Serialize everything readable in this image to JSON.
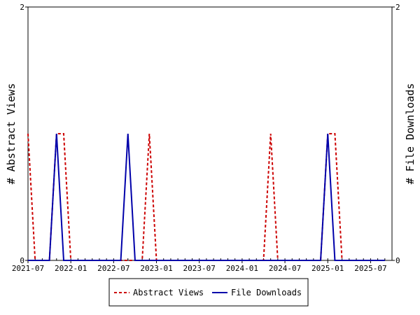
{
  "chart_data": {
    "type": "line",
    "title": "",
    "ylabel_left": "# Abstract Views",
    "ylabel_right": "# File Downloads",
    "x_ticks": [
      "2021-07",
      "2022-01",
      "2022-07",
      "2023-01",
      "2023-07",
      "2024-01",
      "2024-07",
      "2025-01",
      "2025-07"
    ],
    "ylim_left": [
      0,
      2
    ],
    "ylim_right": [
      0,
      2
    ],
    "y_ticks_left": [
      "0",
      "2"
    ],
    "y_ticks_right": [
      "0",
      "2"
    ],
    "legend_position": "bottom",
    "grid": false,
    "series": [
      {
        "name": "Abstract Views",
        "axis": "left",
        "color": "#cc0000",
        "dash": true,
        "points": [
          [
            "2021-07",
            1
          ],
          [
            "2021-08",
            0
          ],
          [
            "2021-09",
            0
          ],
          [
            "2021-10",
            0
          ],
          [
            "2021-11",
            1
          ],
          [
            "2021-12",
            1
          ],
          [
            "2022-01",
            0
          ],
          [
            "2022-02",
            0
          ],
          [
            "2022-03",
            0
          ],
          [
            "2022-04",
            0
          ],
          [
            "2022-05",
            0
          ],
          [
            "2022-06",
            0
          ],
          [
            "2022-07",
            0
          ],
          [
            "2022-08",
            0
          ],
          [
            "2022-09",
            0
          ],
          [
            "2022-10",
            0
          ],
          [
            "2022-11",
            0
          ],
          [
            "2022-12",
            1
          ],
          [
            "2023-01",
            0
          ],
          [
            "2023-02",
            0
          ],
          [
            "2023-03",
            0
          ],
          [
            "2023-04",
            0
          ],
          [
            "2023-05",
            0
          ],
          [
            "2023-06",
            0
          ],
          [
            "2023-07",
            0
          ],
          [
            "2023-08",
            0
          ],
          [
            "2023-09",
            0
          ],
          [
            "2023-10",
            0
          ],
          [
            "2023-11",
            0
          ],
          [
            "2023-12",
            0
          ],
          [
            "2024-01",
            0
          ],
          [
            "2024-02",
            0
          ],
          [
            "2024-03",
            0
          ],
          [
            "2024-04",
            0
          ],
          [
            "2024-05",
            1
          ],
          [
            "2024-06",
            0
          ],
          [
            "2024-07",
            0
          ],
          [
            "2024-08",
            0
          ],
          [
            "2024-09",
            0
          ],
          [
            "2024-10",
            0
          ],
          [
            "2024-11",
            0
          ],
          [
            "2024-12",
            0
          ],
          [
            "2025-01",
            1
          ],
          [
            "2025-02",
            1
          ],
          [
            "2025-03",
            0
          ],
          [
            "2025-04",
            0
          ],
          [
            "2025-05",
            0
          ],
          [
            "2025-06",
            0
          ],
          [
            "2025-07",
            0
          ],
          [
            "2025-08",
            0
          ],
          [
            "2025-09",
            0
          ]
        ]
      },
      {
        "name": "File Downloads",
        "axis": "right",
        "color": "#0000aa",
        "dash": false,
        "points": [
          [
            "2021-07",
            0
          ],
          [
            "2021-08",
            0
          ],
          [
            "2021-09",
            0
          ],
          [
            "2021-10",
            0
          ],
          [
            "2021-11",
            1
          ],
          [
            "2021-12",
            0
          ],
          [
            "2022-01",
            0
          ],
          [
            "2022-02",
            0
          ],
          [
            "2022-03",
            0
          ],
          [
            "2022-04",
            0
          ],
          [
            "2022-05",
            0
          ],
          [
            "2022-06",
            0
          ],
          [
            "2022-07",
            0
          ],
          [
            "2022-08",
            0
          ],
          [
            "2022-09",
            1
          ],
          [
            "2022-10",
            0
          ],
          [
            "2022-11",
            0
          ],
          [
            "2022-12",
            0
          ],
          [
            "2023-01",
            0
          ],
          [
            "2023-02",
            0
          ],
          [
            "2023-03",
            0
          ],
          [
            "2023-04",
            0
          ],
          [
            "2023-05",
            0
          ],
          [
            "2023-06",
            0
          ],
          [
            "2023-07",
            0
          ],
          [
            "2023-08",
            0
          ],
          [
            "2023-09",
            0
          ],
          [
            "2023-10",
            0
          ],
          [
            "2023-11",
            0
          ],
          [
            "2023-12",
            0
          ],
          [
            "2024-01",
            0
          ],
          [
            "2024-02",
            0
          ],
          [
            "2024-03",
            0
          ],
          [
            "2024-04",
            0
          ],
          [
            "2024-05",
            0
          ],
          [
            "2024-06",
            0
          ],
          [
            "2024-07",
            0
          ],
          [
            "2024-08",
            0
          ],
          [
            "2024-09",
            0
          ],
          [
            "2024-10",
            0
          ],
          [
            "2024-11",
            0
          ],
          [
            "2024-12",
            0
          ],
          [
            "2025-01",
            1
          ],
          [
            "2025-02",
            0
          ],
          [
            "2025-03",
            0
          ],
          [
            "2025-04",
            0
          ],
          [
            "2025-05",
            0
          ],
          [
            "2025-06",
            0
          ],
          [
            "2025-07",
            0
          ],
          [
            "2025-08",
            0
          ],
          [
            "2025-09",
            0
          ]
        ]
      }
    ]
  }
}
